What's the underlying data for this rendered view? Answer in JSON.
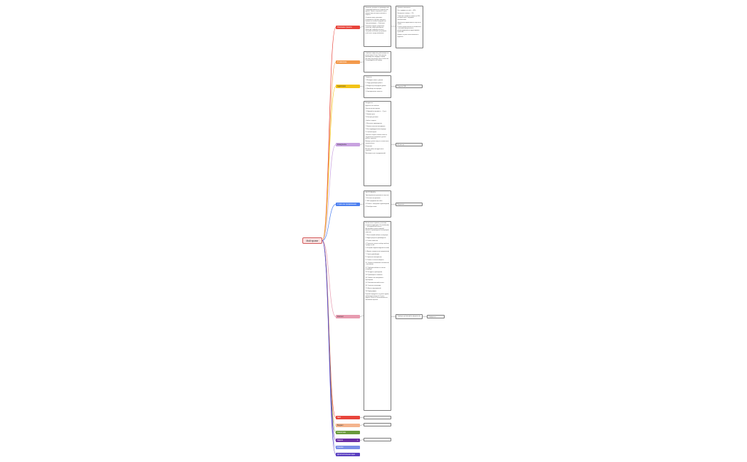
{
  "root": {
    "label": "Мой проект"
  },
  "branches": [
    {
      "label": "Описание проекта",
      "color": "#e8453c"
    },
    {
      "label": "О заказчике",
      "color": "#f39a4c"
    },
    {
      "label": "Аудитория",
      "color": "#f2c318"
    },
    {
      "label": "Конкуренты",
      "color": "#c8a2e0"
    },
    {
      "label": "Стратегия продвижения",
      "color": "#4c7ff0"
    },
    {
      "label": "Контент",
      "color": "#e79bb0"
    },
    {
      "label": "SEO",
      "color": "#e8453c"
    },
    {
      "label": "Бюджет",
      "color": "#f4b48d"
    },
    {
      "label": "Аналитика",
      "color": "#6a9a3c"
    },
    {
      "label": "Задачи",
      "color": "#6b2fa5"
    },
    {
      "label": "Ссылки",
      "color": "#7b8fe8"
    },
    {
      "label": "Дополнительные идеи",
      "color": "#5a3fc0"
    }
  ],
  "notes": {
    "description": [
      "Компания занимается производством и продажей мебели из натурального дерева. Проект направлен на рост продаж через интернет-магазин и соцсети.",
      "Основные цели: увеличить узнаваемость бренда, повысить количество заявок и средний чек. Срок реализации — 6 месяцев.",
      "Ключевые задачи: разработка стратегии, запуск рекламных кампаний, создание контента, настройка аналитики, регулярная отчётность перед заказчиком."
    ],
    "client": [
      "Семейная компания, работающая на рынке более 10 лет. Собственное производство, шоурум в городе, доставка по региону. Ценят качество и индивидуальный подход."
    ],
    "audience": [
      "Сегменты:",
      "1. Молодые семьи с детьми",
      "2. Люди, делающие ремонт",
      "3. Владельцы загородных домов",
      "4. Дизайнеры интерьеров",
      "5. Корпоративные клиенты"
    ],
    "competitors": [
      "Конкуренты:",
      "Крупные сети мебели",
      "Локальные мастерские",
      "1. Широкий ассортимент — 3 дня",
      "2. Низкие цены",
      "3. Быстрая доставка",
      "Слабые стороны:",
      "1. Массовое производство",
      "2. Низкое качество материалов",
      "3. Нет индивидуального подхода",
      "4. Слабый сервис",
      "Сильные стороны нашего клиента: натуральные материалы, ручная работа, гарантия.",
      "Выводы: делать акцент на качестве и экологичности.",
      "Источники:",
      "Анализ сайтов конкурентов и соцсетей.",
      "Мониторинг цен и предложений."
    ],
    "strategy": [
      "ИНСТРУМЕНТЫ:",
      "Таргетированная реклама в соцсетях",
      "1. Контекстная реклама",
      "2. SEO-продвижение сайта",
      "3. Работа с блогерами и дизайнерами",
      "4. Email-рассылки"
    ],
    "content": [
      "Контент-план строится на основе интересов аудитории. Основной упор — на визуальный контент: фотографии готовых изделий, процесса производства и интерьеров клиентов.",
      "1. Фото готовой мебели в интерьере",
      "2. Видео процесса производства",
      "3. Отзывы клиентов",
      "4. Полезные статьи о выборе мебели и уходе за ней",
      "5. Истории создания изделий на заказ",
      "6. Акции и специальные предложения",
      "7. Советы дизайнеров",
      "8. Сравнение материалов",
      "9. Ответы на частые вопросы",
      "10. Закулисье компании и знакомство с мастерами",
      "11. Подборки мебели по стилям интерьера",
      "12. Конкурсы и розыгрыши",
      "13. Публикации о новинках",
      "14. Совместные материалы с партнёрами",
      "15. Пользовательский контент",
      "16. Сезонные коллекции",
      "17. Анонсы мероприятий",
      "18. Инфографика",
      "Рубрики чередуются по дням недели, публикации выходят 4–5 раз в неделю. Контент согласовывается с заказчиком заранее."
    ]
  },
  "side_notes": {
    "description_detail": [
      "Целевые показатели:",
      "Рост трафика на сайт — 40%.",
      "Конверсия в заявку — 3%.",
      "Снижение стоимости заявки на 20% по сравнению с текущими показателями.",
      "Увеличение подписчиков в соцсетях в 2 раза.",
      "Отчёты предоставляются ежемесячно с анализом результатов и рекомендациями по корректировке стратегии.",
      "Бюджет и сроки согласовываются отдельно."
    ],
    "audience_link": "Портреты ЦА",
    "competitors_link": "Анализ цен",
    "strategy_link": "Медиаплан",
    "content_link": "Примеры публикаций и оформление",
    "content_sub": "Референсы"
  },
  "empty_notes": {
    "seo": "",
    "budget": "",
    "tasks": ""
  },
  "tasks_expand": "+"
}
